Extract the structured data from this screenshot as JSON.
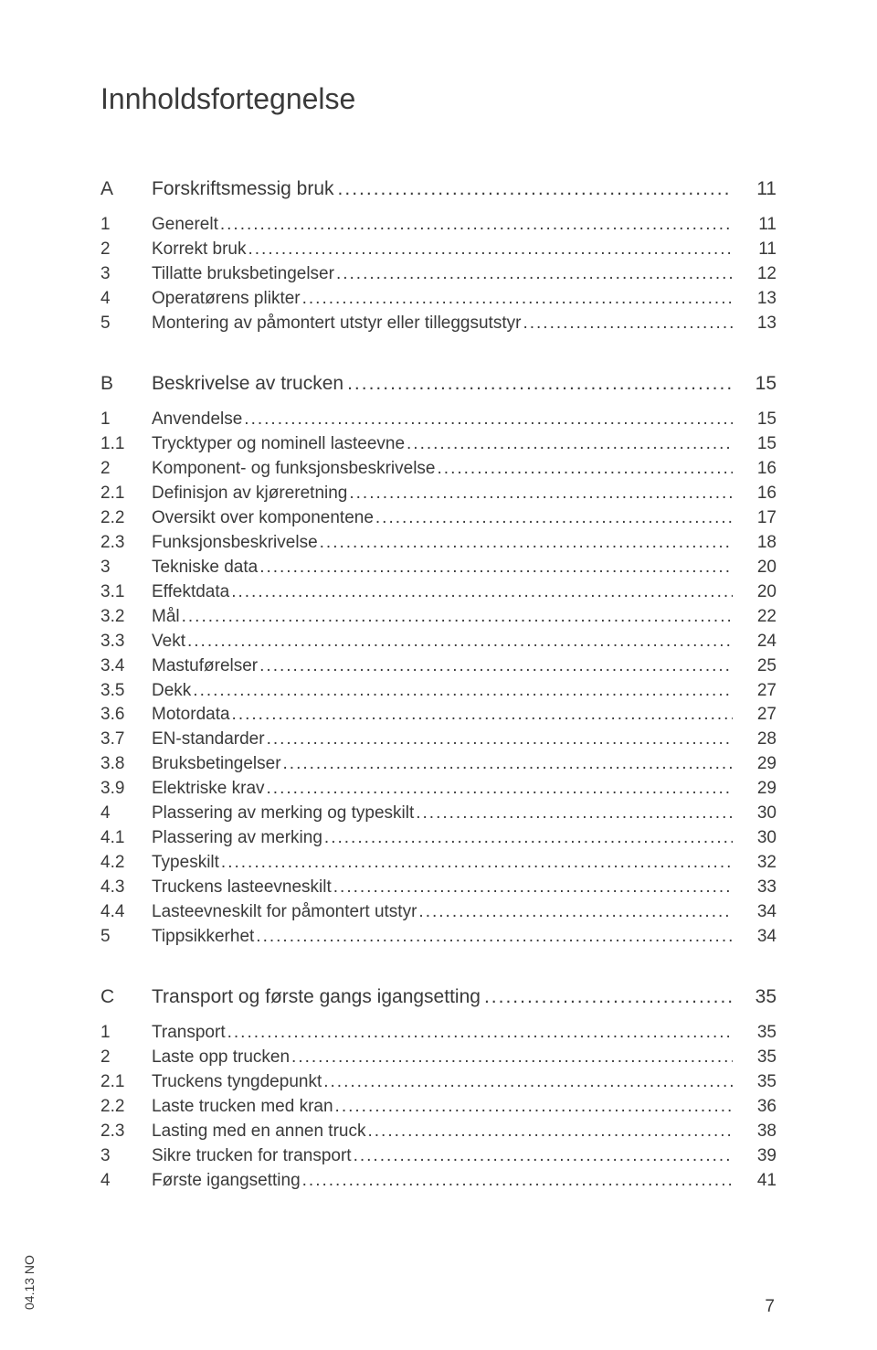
{
  "title": "Innholdsfortegnelse",
  "footer_rotated": "04.13 NO",
  "footer_page": "7",
  "text_color": "#3a3a3a",
  "background_color": "#ffffff",
  "sections": [
    {
      "letter": "A",
      "title": "Forskriftsmessig bruk",
      "page": "11",
      "entries": [
        {
          "num": "1",
          "text": "Generelt",
          "page": "11"
        },
        {
          "num": "2",
          "text": "Korrekt bruk",
          "page": "11"
        },
        {
          "num": "3",
          "text": "Tillatte bruksbetingelser",
          "page": "12"
        },
        {
          "num": "4",
          "text": "Operatørens plikter",
          "page": "13"
        },
        {
          "num": "5",
          "text": "Montering av påmontert utstyr eller tilleggsutstyr",
          "page": "13"
        }
      ]
    },
    {
      "letter": "B",
      "title": "Beskrivelse av trucken",
      "page": "15",
      "entries": [
        {
          "num": "1",
          "text": "Anvendelse",
          "page": "15"
        },
        {
          "num": "1.1",
          "text": "Trycktyper og nominell lasteevne",
          "page": "15"
        },
        {
          "num": "2",
          "text": "Komponent- og funksjonsbeskrivelse",
          "page": "16"
        },
        {
          "num": "2.1",
          "text": "Definisjon av kjøreretning",
          "page": "16"
        },
        {
          "num": "2.2",
          "text": "Oversikt over komponentene",
          "page": "17"
        },
        {
          "num": "2.3",
          "text": "Funksjonsbeskrivelse",
          "page": "18"
        },
        {
          "num": "3",
          "text": "Tekniske data",
          "page": "20"
        },
        {
          "num": "3.1",
          "text": "Effektdata",
          "page": "20"
        },
        {
          "num": "3.2",
          "text": "Mål",
          "page": "22"
        },
        {
          "num": "3.3",
          "text": "Vekt",
          "page": "24"
        },
        {
          "num": "3.4",
          "text": "Mastuførelser",
          "page": "25"
        },
        {
          "num": "3.5",
          "text": "Dekk",
          "page": "27"
        },
        {
          "num": "3.6",
          "text": "Motordata",
          "page": "27"
        },
        {
          "num": "3.7",
          "text": "EN-standarder",
          "page": "28"
        },
        {
          "num": "3.8",
          "text": "Bruksbetingelser",
          "page": "29"
        },
        {
          "num": "3.9",
          "text": "Elektriske krav",
          "page": "29"
        },
        {
          "num": "4",
          "text": "Plassering av merking og typeskilt",
          "page": "30"
        },
        {
          "num": "4.1",
          "text": "Plassering av merking",
          "page": "30"
        },
        {
          "num": "4.2",
          "text": "Typeskilt",
          "page": "32"
        },
        {
          "num": "4.3",
          "text": "Truckens lasteevneskilt",
          "page": "33"
        },
        {
          "num": "4.4",
          "text": "Lasteevneskilt for påmontert utstyr",
          "page": "34"
        },
        {
          "num": "5",
          "text": "Tippsikkerhet",
          "page": "34"
        }
      ]
    },
    {
      "letter": "C",
      "title": "Transport og første gangs igangsetting",
      "page": "35",
      "entries": [
        {
          "num": "1",
          "text": "Transport",
          "page": "35"
        },
        {
          "num": "2",
          "text": "Laste opp trucken",
          "page": "35"
        },
        {
          "num": "2.1",
          "text": "Truckens tyngdepunkt",
          "page": "35"
        },
        {
          "num": "2.2",
          "text": "Laste trucken med kran",
          "page": "36"
        },
        {
          "num": "2.3",
          "text": "Lasting med en annen truck",
          "page": "38"
        },
        {
          "num": "3",
          "text": "Sikre trucken for transport",
          "page": "39"
        },
        {
          "num": "4",
          "text": "Første igangsetting",
          "page": "41"
        }
      ]
    }
  ]
}
